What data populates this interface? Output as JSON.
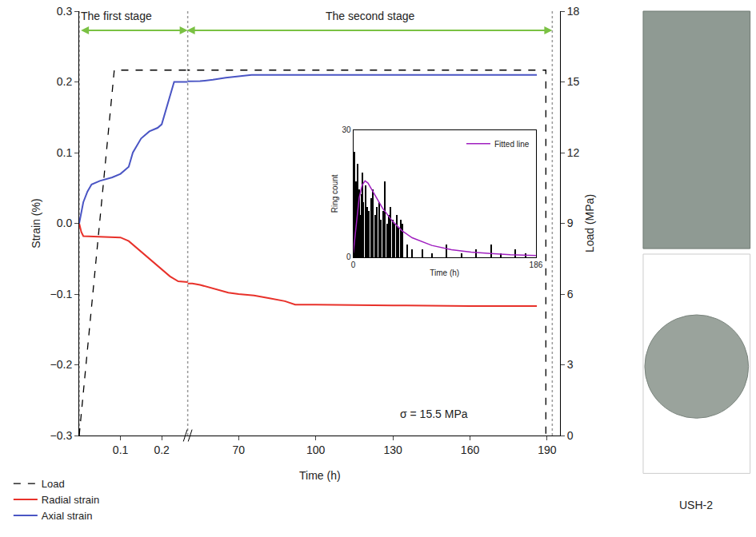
{
  "chart_data": [
    {
      "type": "line",
      "x_label": "Time (h)",
      "y_label": "Strain (%)",
      "y2_label": "Load (MPa)",
      "x_segments": [
        {
          "xlim": [
            0,
            0.263
          ],
          "xticks": [
            0.1,
            0.2
          ]
        },
        {
          "xlim": [
            50.2,
            195
          ],
          "xticks": [
            70,
            100,
            130,
            160,
            190
          ]
        }
      ],
      "ylim": [
        -0.3,
        0.3
      ],
      "yticks": [
        {
          "value": -0.3,
          "label": "−0.3"
        },
        {
          "value": -0.2,
          "label": "−0.2"
        },
        {
          "value": -0.1,
          "label": "−0.1"
        },
        {
          "value": 0,
          "label": "0.0"
        },
        0.1,
        0.2,
        0.3
      ],
      "y2lim": [
        0,
        18
      ],
      "y2ticks": [
        0,
        3,
        6,
        9,
        12,
        15,
        18
      ],
      "grid": false,
      "legend": "below left",
      "stages": [
        {
          "label": "The first stage",
          "start": 0,
          "end": 0.263
        },
        {
          "label": "The second stage",
          "start": 0.263,
          "end": 192
        }
      ],
      "annotations": [
        {
          "text": "σ = 15.5 MPa",
          "x": 146,
          "y": -0.27
        }
      ],
      "series": [
        {
          "name": "Load",
          "color": "#000000",
          "line_style": "dashed",
          "axis": "y2",
          "x": [
            0,
            0.085,
            189.5,
            189.5
          ],
          "values": [
            0,
            15.5,
            15.5,
            0
          ]
        },
        {
          "name": "Radial strain",
          "color": "#e8312a",
          "line_style": "solid",
          "x": [
            0,
            0.005,
            0.01,
            0.05,
            0.1,
            0.12,
            0.14,
            0.16,
            0.18,
            0.2,
            0.22,
            0.24,
            0.263,
            52,
            55,
            58,
            62,
            66,
            70,
            76,
            82,
            88,
            92,
            100,
            130,
            160,
            186
          ],
          "values": [
            0,
            -0.012,
            -0.018,
            -0.019,
            -0.02,
            -0.025,
            -0.035,
            -0.045,
            -0.055,
            -0.065,
            -0.075,
            -0.082,
            -0.083,
            -0.085,
            -0.087,
            -0.09,
            -0.094,
            -0.098,
            -0.1,
            -0.102,
            -0.106,
            -0.11,
            -0.115,
            -0.115,
            -0.116,
            -0.117,
            -0.117
          ]
        },
        {
          "name": "Axial strain",
          "color": "#4a55c4",
          "line_style": "solid",
          "x": [
            0,
            0.005,
            0.01,
            0.02,
            0.03,
            0.05,
            0.08,
            0.1,
            0.12,
            0.13,
            0.14,
            0.15,
            0.17,
            0.19,
            0.2,
            0.21,
            0.22,
            0.23,
            0.263,
            55,
            60,
            65,
            70,
            75,
            80,
            100,
            130,
            160,
            186
          ],
          "values": [
            0,
            0.015,
            0.03,
            0.045,
            0.055,
            0.06,
            0.065,
            0.07,
            0.08,
            0.1,
            0.11,
            0.12,
            0.13,
            0.135,
            0.14,
            0.16,
            0.18,
            0.2,
            0.2,
            0.201,
            0.203,
            0.206,
            0.208,
            0.21,
            0.21,
            0.21,
            0.21,
            0.21,
            0.21
          ]
        }
      ]
    },
    {
      "type": "bar",
      "x_label": "Time (h)",
      "y_label": "Ring count",
      "xlim": [
        0,
        186
      ],
      "xticks": [
        0,
        186
      ],
      "ylim": [
        0,
        30
      ],
      "yticks": [
        0,
        30
      ],
      "legend": "upper right",
      "series": [
        {
          "type": "bar",
          "color": "#000000",
          "x": [
            1,
            2,
            3,
            4,
            5,
            6,
            7,
            8,
            9,
            10,
            12,
            14,
            16,
            18,
            20,
            22,
            24,
            26,
            28,
            30,
            32,
            34,
            36,
            38,
            40,
            42,
            44,
            46,
            48,
            50,
            55,
            60,
            70,
            80,
            95,
            110,
            125,
            140,
            150,
            165,
            175
          ],
          "values": [
            25,
            14,
            18,
            22,
            12,
            16,
            10,
            15,
            20,
            13,
            17,
            12,
            11,
            14,
            16,
            10,
            12,
            13,
            9,
            11,
            18,
            8,
            10,
            12,
            9,
            8,
            10,
            7,
            9,
            8,
            3,
            2,
            2,
            1,
            3,
            1,
            2,
            3,
            1,
            2,
            1
          ]
        },
        {
          "type": "line",
          "name": "Fitted line",
          "color": "#a020c0",
          "x": [
            0,
            3,
            6,
            9,
            12,
            15,
            20,
            25,
            30,
            40,
            50,
            60,
            80,
            100,
            120,
            140,
            160,
            186
          ],
          "values": [
            1,
            8,
            14,
            17,
            18,
            17.5,
            15.5,
            13.5,
            11.5,
            8.5,
            6.2,
            4.6,
            2.8,
            1.8,
            1.2,
            0.9,
            0.6,
            0.4
          ]
        }
      ]
    }
  ],
  "figure": {
    "photo_label": "USH-2"
  }
}
